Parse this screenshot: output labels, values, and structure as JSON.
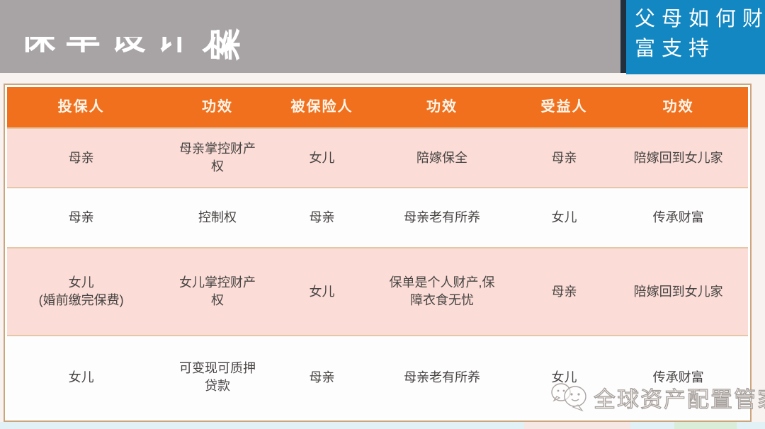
{
  "slide": {
    "title": "保单设计方案",
    "title_last_char": "案",
    "corner_box": {
      "line1": "父母如何财",
      "line2": "富支持"
    },
    "watermark": {
      "text": "全球资产配置管家",
      "logo": "chat-bubbles-icon"
    }
  },
  "table": {
    "headers": [
      "投保人",
      "功效",
      "被保险人",
      "功效",
      "受益人",
      "功效"
    ],
    "rows": [
      [
        "母亲",
        "母亲掌控财产\n权",
        "女儿",
        "陪嫁保全",
        "母亲",
        "陪嫁回到女儿家"
      ],
      [
        "母亲",
        "控制权",
        "母亲",
        "母亲老有所养",
        "女儿",
        "传承财富"
      ],
      [
        "女儿\n(婚前缴完保费)",
        "女儿掌控财产\n权",
        "女儿",
        "保单是个人财产,保\n障衣食无忧",
        "母亲",
        "陪嫁回到女儿家"
      ],
      [
        "女儿",
        "可变现可质押\n贷款",
        "母亲",
        "母亲老有所养",
        "女儿",
        "传承财富"
      ]
    ]
  },
  "colors": {
    "banner_gray": "#a8a4a5",
    "corner_blue": "#1287c2",
    "navy_divider": "#22303e",
    "header_orange": "#f1701e",
    "row_pink": "#fbdcd6",
    "row_white": "#fefdfd",
    "table_border_tan": "#cda57c",
    "row_separator_tan": "#e5c6a6",
    "bottom_strip_blue": "#e2f1f6",
    "bottom_strip_green": "#d9edd8"
  }
}
